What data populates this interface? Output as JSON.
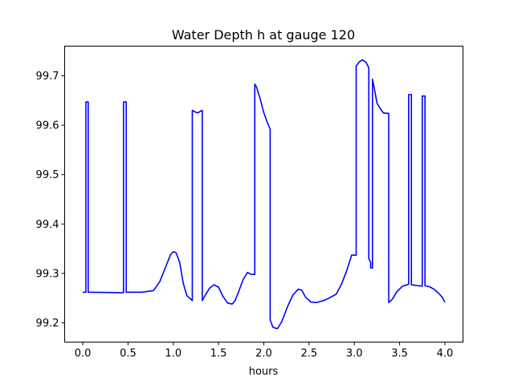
{
  "chart_data": {
    "type": "line",
    "title": "Water Depth h at gauge 120",
    "xlabel": "hours",
    "ylabel": "",
    "xlim": [
      -0.2,
      4.2
    ],
    "ylim": [
      99.161,
      99.76
    ],
    "xticks": [
      0.0,
      0.5,
      1.0,
      1.5,
      2.0,
      2.5,
      3.0,
      3.5,
      4.0
    ],
    "xtick_labels": [
      "0.0",
      "0.5",
      "1.0",
      "1.5",
      "2.0",
      "2.5",
      "3.0",
      "3.5",
      "4.0"
    ],
    "yticks": [
      99.2,
      99.3,
      99.4,
      99.5,
      99.6,
      99.7
    ],
    "ytick_labels": [
      "99.2",
      "99.3",
      "99.4",
      "99.5",
      "99.6",
      "99.7"
    ],
    "grid": false,
    "legend": "none",
    "series": [
      {
        "color": "#0000ff",
        "x": [
          0.0,
          0.035,
          0.035,
          0.06,
          0.06,
          0.45,
          0.45,
          0.48,
          0.48,
          0.55,
          0.65,
          0.78,
          0.85,
          0.92,
          0.97,
          1.0,
          1.03,
          1.07,
          1.11,
          1.15,
          1.21,
          1.21,
          1.25,
          1.27,
          1.32,
          1.32,
          1.36,
          1.4,
          1.45,
          1.5,
          1.55,
          1.6,
          1.65,
          1.68,
          1.72,
          1.77,
          1.82,
          1.86,
          1.9,
          1.9,
          1.92,
          1.96,
          2.0,
          2.04,
          2.07,
          2.07,
          2.1,
          2.15,
          2.2,
          2.26,
          2.32,
          2.38,
          2.42,
          2.46,
          2.52,
          2.58,
          2.66,
          2.72,
          2.8,
          2.86,
          2.92,
          2.97,
          3.02,
          3.02,
          3.06,
          3.09,
          3.13,
          3.16,
          3.16,
          3.18,
          3.18,
          3.2,
          3.2,
          3.22,
          3.25,
          3.28,
          3.32,
          3.35,
          3.37,
          3.38,
          3.38,
          3.42,
          3.47,
          3.53,
          3.6,
          3.6,
          3.63,
          3.63,
          3.75,
          3.75,
          3.78,
          3.78,
          3.83,
          3.88,
          3.93,
          3.97,
          4.0
        ],
        "y": [
          99.262,
          99.262,
          99.647,
          99.647,
          99.262,
          99.261,
          99.647,
          99.647,
          99.262,
          99.262,
          99.262,
          99.265,
          99.283,
          99.315,
          99.338,
          99.344,
          99.342,
          99.323,
          99.28,
          99.255,
          99.245,
          99.63,
          99.626,
          99.625,
          99.63,
          99.245,
          99.258,
          99.27,
          99.277,
          99.272,
          99.253,
          99.24,
          99.238,
          99.244,
          99.262,
          99.287,
          99.302,
          99.298,
          99.298,
          99.683,
          99.677,
          99.653,
          99.625,
          99.605,
          99.592,
          99.206,
          99.191,
          99.188,
          99.203,
          99.232,
          99.256,
          99.268,
          99.266,
          99.252,
          99.242,
          99.241,
          99.245,
          99.25,
          99.258,
          99.279,
          99.308,
          99.337,
          99.337,
          99.72,
          99.729,
          99.732,
          99.727,
          99.716,
          99.33,
          99.322,
          99.311,
          99.311,
          99.693,
          99.675,
          99.645,
          99.635,
          99.625,
          99.624,
          99.624,
          99.624,
          99.241,
          99.248,
          99.263,
          99.274,
          99.278,
          99.662,
          99.662,
          99.277,
          99.274,
          99.659,
          99.659,
          99.275,
          99.273,
          99.268,
          99.26,
          99.252,
          99.242
        ]
      }
    ]
  }
}
